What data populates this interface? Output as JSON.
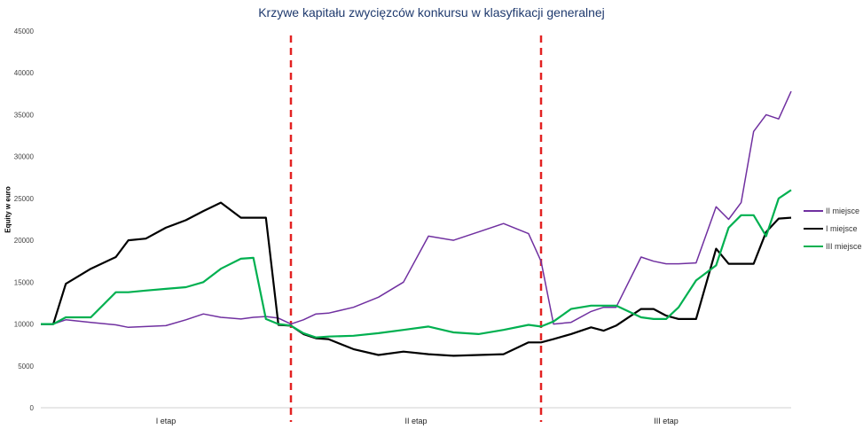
{
  "chart_data": {
    "type": "line",
    "title": "Krzywe kapitału  zwycięzców konkursu w klasyfikacji generalnej",
    "ylabel": "Equity w euro",
    "xlabel": "",
    "ylim": [
      0,
      45000
    ],
    "yticks": [
      0,
      5000,
      10000,
      15000,
      20000,
      25000,
      30000,
      35000,
      40000,
      45000
    ],
    "grid": false,
    "legend_position": "right",
    "x_categories": [
      "I etap",
      "II etap",
      "III etap"
    ],
    "stage_dividers": [
      1.0,
      2.0
    ],
    "divider_color": "#e32222",
    "x": [
      0,
      0.05,
      0.1,
      0.2,
      0.3,
      0.35,
      0.42,
      0.5,
      0.58,
      0.65,
      0.72,
      0.8,
      0.85,
      0.9,
      0.95,
      1.0,
      1.05,
      1.1,
      1.15,
      1.25,
      1.35,
      1.45,
      1.55,
      1.65,
      1.75,
      1.85,
      1.95,
      2.0,
      2.05,
      2.12,
      2.2,
      2.25,
      2.3,
      2.4,
      2.45,
      2.5,
      2.55,
      2.62,
      2.7,
      2.75,
      2.8,
      2.85,
      2.9,
      2.95,
      3.0
    ],
    "series": [
      {
        "name": "II miejsce",
        "color": "#7030a0",
        "values": [
          10000,
          10000,
          10500,
          10200,
          9900,
          9600,
          9700,
          9800,
          10500,
          11200,
          10800,
          10600,
          10800,
          10900,
          10700,
          10000,
          10500,
          11200,
          11300,
          12000,
          13200,
          15000,
          20500,
          20000,
          21000,
          22000,
          20800,
          17500,
          10000,
          10200,
          11500,
          12000,
          12000,
          18000,
          17500,
          17200,
          17200,
          17300,
          24000,
          22500,
          24500,
          33000,
          35000,
          34500,
          37800
        ]
      },
      {
        "name": "I miejsce",
        "color": "#000000",
        "values": [
          10000,
          10000,
          14800,
          16600,
          18000,
          20000,
          20200,
          21500,
          22400,
          23500,
          24500,
          22700,
          22700,
          22700,
          9900,
          9800,
          8800,
          8300,
          8200,
          7000,
          6300,
          6700,
          6400,
          6200,
          6300,
          6400,
          7800,
          7800,
          8200,
          8800,
          9600,
          9200,
          9800,
          11800,
          11800,
          11000,
          10600,
          10600,
          19000,
          17200,
          17200,
          17200,
          21000,
          22600,
          22700
        ]
      },
      {
        "name": "III miejsce",
        "color": "#00b050",
        "values": [
          10000,
          10000,
          10800,
          10800,
          13800,
          13800,
          14000,
          14200,
          14400,
          15000,
          16600,
          17800,
          17900,
          10600,
          10000,
          9800,
          8900,
          8400,
          8500,
          8600,
          8900,
          9300,
          9700,
          9000,
          8800,
          9300,
          9900,
          9700,
          10300,
          11800,
          12200,
          12200,
          12200,
          10800,
          10600,
          10600,
          12000,
          15200,
          17000,
          21500,
          23000,
          23000,
          20500,
          25000,
          26000
        ]
      }
    ]
  }
}
